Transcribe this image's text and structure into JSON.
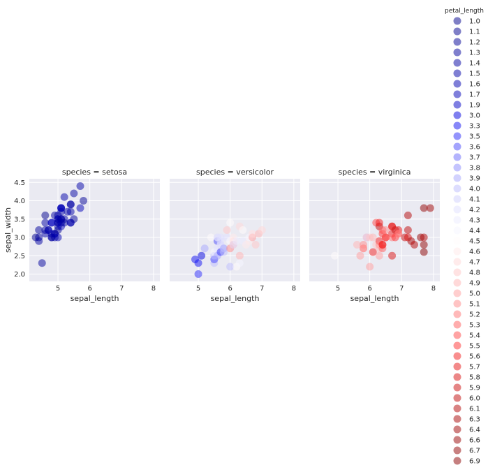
{
  "chart_data": {
    "type": "scatter",
    "facet_by": "species",
    "hue_by": "petal_length",
    "xlabel": "sepal_length",
    "ylabel": "sepal_width",
    "xlim": [
      4.1,
      8.2
    ],
    "ylim": [
      1.8,
      4.6
    ],
    "xticks": [
      "5",
      "6",
      "7",
      "8"
    ],
    "yticks": [
      "2.0",
      "2.5",
      "3.0",
      "3.5",
      "4.0",
      "4.5"
    ],
    "grid": true,
    "legend_placement": "right",
    "legend": {
      "title": "petal_length",
      "entries": [
        {
          "label": "1.0",
          "color": "#00008b"
        },
        {
          "label": "1.1",
          "color": "#00008f"
        },
        {
          "label": "1.2",
          "color": "#000095"
        },
        {
          "label": "1.3",
          "color": "#00009b"
        },
        {
          "label": "1.4",
          "color": "#0000a2"
        },
        {
          "label": "1.5",
          "color": "#0000a8"
        },
        {
          "label": "1.6",
          "color": "#0000b0"
        },
        {
          "label": "1.7",
          "color": "#0000b8"
        },
        {
          "label": "1.9",
          "color": "#0000c6"
        },
        {
          "label": "3.0",
          "color": "#0000df"
        },
        {
          "label": "3.3",
          "color": "#1010f2"
        },
        {
          "label": "3.5",
          "color": "#2a2afa"
        },
        {
          "label": "3.6",
          "color": "#4a4afb"
        },
        {
          "label": "3.7",
          "color": "#6a6afc"
        },
        {
          "label": "3.8",
          "color": "#8a8afd"
        },
        {
          "label": "3.9",
          "color": "#a5a5fd"
        },
        {
          "label": "4.0",
          "color": "#bcbcfe"
        },
        {
          "label": "4.1",
          "color": "#cfcffe"
        },
        {
          "label": "4.2",
          "color": "#e0e0ff"
        },
        {
          "label": "4.3",
          "color": "#ececff"
        },
        {
          "label": "4.4",
          "color": "#f6f6ff"
        },
        {
          "label": "4.5",
          "color": "#fffbfb"
        },
        {
          "label": "4.6",
          "color": "#ffeaea"
        },
        {
          "label": "4.7",
          "color": "#ffd8d8"
        },
        {
          "label": "4.8",
          "color": "#ffc6c6"
        },
        {
          "label": "4.9",
          "color": "#ffb4b4"
        },
        {
          "label": "5.0",
          "color": "#ff9e9e"
        },
        {
          "label": "5.1",
          "color": "#ff8a8a"
        },
        {
          "label": "5.2",
          "color": "#ff7474"
        },
        {
          "label": "5.3",
          "color": "#ff5c5c"
        },
        {
          "label": "5.4",
          "color": "#ff4848"
        },
        {
          "label": "5.5",
          "color": "#ff3232"
        },
        {
          "label": "5.6",
          "color": "#f41e1e"
        },
        {
          "label": "5.7",
          "color": "#e81616"
        },
        {
          "label": "5.8",
          "color": "#da1010"
        },
        {
          "label": "5.9",
          "color": "#cc0b0b"
        },
        {
          "label": "6.0",
          "color": "#c00808"
        },
        {
          "label": "6.1",
          "color": "#b40606"
        },
        {
          "label": "6.3",
          "color": "#a80404"
        },
        {
          "label": "6.4",
          "color": "#9f0303"
        },
        {
          "label": "6.6",
          "color": "#980202"
        },
        {
          "label": "6.7",
          "color": "#920101"
        },
        {
          "label": "6.9",
          "color": "#8b0000"
        }
      ]
    },
    "panels": [
      {
        "title": "species = setosa",
        "points": [
          {
            "x": 4.3,
            "y": 3.0,
            "hue": 1.1
          },
          {
            "x": 4.4,
            "y": 2.9,
            "hue": 1.4
          },
          {
            "x": 4.4,
            "y": 3.0,
            "hue": 1.3
          },
          {
            "x": 4.4,
            "y": 3.2,
            "hue": 1.3
          },
          {
            "x": 4.5,
            "y": 2.3,
            "hue": 1.3
          },
          {
            "x": 4.6,
            "y": 3.1,
            "hue": 1.5
          },
          {
            "x": 4.6,
            "y": 3.4,
            "hue": 1.4
          },
          {
            "x": 4.6,
            "y": 3.6,
            "hue": 1.0
          },
          {
            "x": 4.6,
            "y": 3.2,
            "hue": 1.4
          },
          {
            "x": 4.7,
            "y": 3.2,
            "hue": 1.3
          },
          {
            "x": 4.7,
            "y": 3.2,
            "hue": 1.6
          },
          {
            "x": 4.8,
            "y": 3.4,
            "hue": 1.6
          },
          {
            "x": 4.8,
            "y": 3.0,
            "hue": 1.4
          },
          {
            "x": 4.8,
            "y": 3.4,
            "hue": 1.9
          },
          {
            "x": 4.8,
            "y": 3.1,
            "hue": 1.6
          },
          {
            "x": 4.8,
            "y": 3.0,
            "hue": 1.4
          },
          {
            "x": 4.9,
            "y": 3.0,
            "hue": 1.4
          },
          {
            "x": 4.9,
            "y": 3.1,
            "hue": 1.5
          },
          {
            "x": 4.9,
            "y": 3.6,
            "hue": 1.4
          },
          {
            "x": 4.9,
            "y": 3.1,
            "hue": 1.5
          },
          {
            "x": 5.0,
            "y": 3.6,
            "hue": 1.4
          },
          {
            "x": 5.0,
            "y": 3.4,
            "hue": 1.5
          },
          {
            "x": 5.0,
            "y": 3.0,
            "hue": 1.6
          },
          {
            "x": 5.0,
            "y": 3.4,
            "hue": 1.6
          },
          {
            "x": 5.0,
            "y": 3.2,
            "hue": 1.2
          },
          {
            "x": 5.0,
            "y": 3.5,
            "hue": 1.3
          },
          {
            "x": 5.0,
            "y": 3.5,
            "hue": 1.6
          },
          {
            "x": 5.0,
            "y": 3.3,
            "hue": 1.4
          },
          {
            "x": 5.1,
            "y": 3.5,
            "hue": 1.4
          },
          {
            "x": 5.1,
            "y": 3.5,
            "hue": 1.4
          },
          {
            "x": 5.1,
            "y": 3.8,
            "hue": 1.5
          },
          {
            "x": 5.1,
            "y": 3.7,
            "hue": 1.5
          },
          {
            "x": 5.1,
            "y": 3.3,
            "hue": 1.7
          },
          {
            "x": 5.1,
            "y": 3.4,
            "hue": 1.5
          },
          {
            "x": 5.1,
            "y": 3.8,
            "hue": 1.9
          },
          {
            "x": 5.1,
            "y": 3.8,
            "hue": 1.6
          },
          {
            "x": 5.2,
            "y": 3.5,
            "hue": 1.5
          },
          {
            "x": 5.2,
            "y": 3.4,
            "hue": 1.4
          },
          {
            "x": 5.2,
            "y": 4.1,
            "hue": 1.5
          },
          {
            "x": 5.3,
            "y": 3.7,
            "hue": 1.5
          },
          {
            "x": 5.4,
            "y": 3.9,
            "hue": 1.7
          },
          {
            "x": 5.4,
            "y": 3.7,
            "hue": 1.5
          },
          {
            "x": 5.4,
            "y": 3.9,
            "hue": 1.3
          },
          {
            "x": 5.4,
            "y": 3.4,
            "hue": 1.7
          },
          {
            "x": 5.4,
            "y": 3.4,
            "hue": 1.5
          },
          {
            "x": 5.5,
            "y": 4.2,
            "hue": 1.4
          },
          {
            "x": 5.5,
            "y": 3.5,
            "hue": 1.3
          },
          {
            "x": 5.7,
            "y": 4.4,
            "hue": 1.5
          },
          {
            "x": 5.7,
            "y": 3.8,
            "hue": 1.7
          },
          {
            "x": 5.8,
            "y": 4.0,
            "hue": 1.2
          }
        ]
      },
      {
        "title": "species = versicolor",
        "points": [
          {
            "x": 4.9,
            "y": 2.4,
            "hue": 3.3
          },
          {
            "x": 5.0,
            "y": 2.3,
            "hue": 3.3
          },
          {
            "x": 5.0,
            "y": 2.0,
            "hue": 3.5
          },
          {
            "x": 5.1,
            "y": 2.5,
            "hue": 3.0
          },
          {
            "x": 5.2,
            "y": 2.7,
            "hue": 3.9
          },
          {
            "x": 5.4,
            "y": 3.0,
            "hue": 4.5
          },
          {
            "x": 5.5,
            "y": 2.3,
            "hue": 4.0
          },
          {
            "x": 5.5,
            "y": 2.4,
            "hue": 3.8
          },
          {
            "x": 5.5,
            "y": 2.4,
            "hue": 3.7
          },
          {
            "x": 5.5,
            "y": 2.5,
            "hue": 4.0
          },
          {
            "x": 5.5,
            "y": 2.6,
            "hue": 4.4
          },
          {
            "x": 5.6,
            "y": 2.9,
            "hue": 3.6
          },
          {
            "x": 5.6,
            "y": 3.0,
            "hue": 4.5
          },
          {
            "x": 5.6,
            "y": 2.5,
            "hue": 3.9
          },
          {
            "x": 5.6,
            "y": 3.0,
            "hue": 4.1
          },
          {
            "x": 5.6,
            "y": 2.7,
            "hue": 4.2
          },
          {
            "x": 5.7,
            "y": 2.8,
            "hue": 4.5
          },
          {
            "x": 5.7,
            "y": 2.6,
            "hue": 3.5
          },
          {
            "x": 5.7,
            "y": 3.0,
            "hue": 4.2
          },
          {
            "x": 5.7,
            "y": 2.9,
            "hue": 4.2
          },
          {
            "x": 5.7,
            "y": 2.8,
            "hue": 4.1
          },
          {
            "x": 5.8,
            "y": 2.7,
            "hue": 4.1
          },
          {
            "x": 5.8,
            "y": 2.7,
            "hue": 3.9
          },
          {
            "x": 5.8,
            "y": 2.6,
            "hue": 4.0
          },
          {
            "x": 5.9,
            "y": 3.0,
            "hue": 4.2
          },
          {
            "x": 5.9,
            "y": 3.2,
            "hue": 4.8
          },
          {
            "x": 6.0,
            "y": 2.2,
            "hue": 4.0
          },
          {
            "x": 6.0,
            "y": 2.9,
            "hue": 4.5
          },
          {
            "x": 6.0,
            "y": 2.7,
            "hue": 5.1
          },
          {
            "x": 6.0,
            "y": 3.4,
            "hue": 4.5
          },
          {
            "x": 6.1,
            "y": 2.9,
            "hue": 4.7
          },
          {
            "x": 6.1,
            "y": 2.8,
            "hue": 4.0
          },
          {
            "x": 6.1,
            "y": 2.8,
            "hue": 4.7
          },
          {
            "x": 6.1,
            "y": 3.0,
            "hue": 4.6
          },
          {
            "x": 6.2,
            "y": 2.2,
            "hue": 4.5
          },
          {
            "x": 6.2,
            "y": 2.9,
            "hue": 4.3
          },
          {
            "x": 6.3,
            "y": 3.3,
            "hue": 4.7
          },
          {
            "x": 6.3,
            "y": 2.5,
            "hue": 4.9
          },
          {
            "x": 6.3,
            "y": 2.3,
            "hue": 4.4
          },
          {
            "x": 6.4,
            "y": 3.2,
            "hue": 4.5
          },
          {
            "x": 6.4,
            "y": 2.9,
            "hue": 4.3
          },
          {
            "x": 6.5,
            "y": 2.8,
            "hue": 4.6
          },
          {
            "x": 6.6,
            "y": 2.9,
            "hue": 4.6
          },
          {
            "x": 6.6,
            "y": 3.0,
            "hue": 4.4
          },
          {
            "x": 6.7,
            "y": 3.1,
            "hue": 4.4
          },
          {
            "x": 6.7,
            "y": 3.0,
            "hue": 5.0
          },
          {
            "x": 6.7,
            "y": 3.1,
            "hue": 4.7
          },
          {
            "x": 6.8,
            "y": 2.8,
            "hue": 4.8
          },
          {
            "x": 6.9,
            "y": 3.1,
            "hue": 4.9
          },
          {
            "x": 7.0,
            "y": 3.2,
            "hue": 4.7
          }
        ]
      },
      {
        "title": "species = virginica",
        "points": [
          {
            "x": 4.9,
            "y": 2.5,
            "hue": 4.5
          },
          {
            "x": 5.6,
            "y": 2.8,
            "hue": 4.9
          },
          {
            "x": 5.7,
            "y": 2.5,
            "hue": 5.0
          },
          {
            "x": 5.8,
            "y": 2.7,
            "hue": 5.1
          },
          {
            "x": 5.8,
            "y": 2.8,
            "hue": 5.1
          },
          {
            "x": 5.8,
            "y": 2.7,
            "hue": 5.1
          },
          {
            "x": 5.9,
            "y": 3.0,
            "hue": 5.1
          },
          {
            "x": 5.9,
            "y": 3.0,
            "hue": 4.2
          },
          {
            "x": 6.0,
            "y": 2.2,
            "hue": 5.0
          },
          {
            "x": 6.0,
            "y": 3.0,
            "hue": 4.8
          },
          {
            "x": 6.1,
            "y": 3.0,
            "hue": 4.9
          },
          {
            "x": 6.1,
            "y": 2.6,
            "hue": 5.6
          },
          {
            "x": 6.2,
            "y": 2.8,
            "hue": 4.8
          },
          {
            "x": 6.2,
            "y": 3.4,
            "hue": 5.4
          },
          {
            "x": 6.3,
            "y": 3.3,
            "hue": 6.0
          },
          {
            "x": 6.3,
            "y": 2.9,
            "hue": 5.6
          },
          {
            "x": 6.3,
            "y": 2.5,
            "hue": 5.0
          },
          {
            "x": 6.3,
            "y": 2.8,
            "hue": 5.1
          },
          {
            "x": 6.3,
            "y": 2.7,
            "hue": 4.9
          },
          {
            "x": 6.3,
            "y": 3.4,
            "hue": 5.6
          },
          {
            "x": 6.4,
            "y": 2.7,
            "hue": 5.3
          },
          {
            "x": 6.4,
            "y": 3.2,
            "hue": 5.3
          },
          {
            "x": 6.4,
            "y": 2.8,
            "hue": 5.6
          },
          {
            "x": 6.4,
            "y": 3.1,
            "hue": 5.5
          },
          {
            "x": 6.4,
            "y": 2.8,
            "hue": 5.6
          },
          {
            "x": 6.5,
            "y": 3.0,
            "hue": 5.8
          },
          {
            "x": 6.5,
            "y": 3.0,
            "hue": 5.5
          },
          {
            "x": 6.5,
            "y": 3.2,
            "hue": 5.1
          },
          {
            "x": 6.5,
            "y": 3.0,
            "hue": 5.2
          },
          {
            "x": 6.7,
            "y": 2.5,
            "hue": 5.8
          },
          {
            "x": 6.7,
            "y": 3.3,
            "hue": 5.7
          },
          {
            "x": 6.7,
            "y": 3.1,
            "hue": 5.6
          },
          {
            "x": 6.7,
            "y": 3.0,
            "hue": 5.2
          },
          {
            "x": 6.7,
            "y": 3.3,
            "hue": 5.7
          },
          {
            "x": 6.8,
            "y": 3.0,
            "hue": 5.5
          },
          {
            "x": 6.8,
            "y": 3.2,
            "hue": 5.9
          },
          {
            "x": 6.9,
            "y": 3.2,
            "hue": 5.7
          },
          {
            "x": 6.9,
            "y": 3.1,
            "hue": 5.4
          },
          {
            "x": 6.9,
            "y": 3.1,
            "hue": 5.1
          },
          {
            "x": 7.1,
            "y": 3.0,
            "hue": 5.9
          },
          {
            "x": 7.2,
            "y": 3.6,
            "hue": 6.1
          },
          {
            "x": 7.2,
            "y": 3.2,
            "hue": 6.0
          },
          {
            "x": 7.2,
            "y": 3.0,
            "hue": 5.8
          },
          {
            "x": 7.3,
            "y": 2.9,
            "hue": 6.3
          },
          {
            "x": 7.4,
            "y": 2.8,
            "hue": 6.1
          },
          {
            "x": 7.6,
            "y": 3.0,
            "hue": 6.6
          },
          {
            "x": 7.7,
            "y": 3.8,
            "hue": 6.7
          },
          {
            "x": 7.7,
            "y": 2.6,
            "hue": 6.9
          },
          {
            "x": 7.7,
            "y": 2.8,
            "hue": 6.7
          },
          {
            "x": 7.7,
            "y": 3.0,
            "hue": 6.1
          },
          {
            "x": 7.9,
            "y": 3.8,
            "hue": 6.4
          }
        ]
      }
    ]
  }
}
